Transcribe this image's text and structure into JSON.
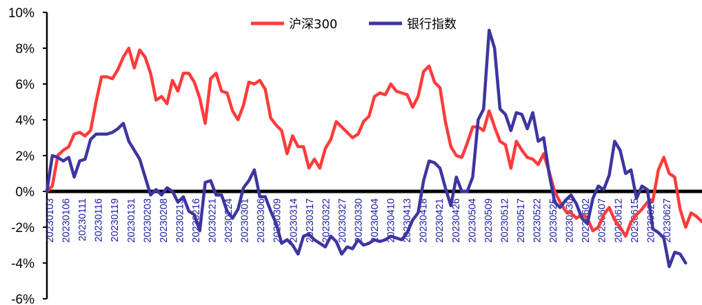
{
  "colors": {
    "series1": "#ff3b3b",
    "series2": "#3d35a0",
    "axis": "#000000",
    "zero_line": "#000000",
    "xtick_text": "#1a1aa0"
  },
  "chart_data": {
    "type": "line",
    "title": "",
    "xlabel": "",
    "ylabel": "",
    "ylim": [
      -6,
      10
    ],
    "y_ticks": [
      10,
      8,
      6,
      4,
      2,
      0,
      -2,
      -4,
      -6
    ],
    "y_tick_labels": [
      "10%",
      "8%",
      "6%",
      "4%",
      "2%",
      "0%",
      "-2%",
      "-4%",
      "-6%"
    ],
    "grid": false,
    "legend_position": "top-center",
    "x_tick_labels": [
      "20230103",
      "20230106",
      "20230111",
      "20230116",
      "20230119",
      "20230131",
      "20230203",
      "20230208",
      "20230213",
      "20230216",
      "20230221",
      "20230224",
      "20230301",
      "20230306",
      "20230309",
      "20230314",
      "20230317",
      "20230322",
      "20230327",
      "20230330",
      "20230404",
      "20230410",
      "20230413",
      "20230418",
      "20230421",
      "20230426",
      "20230504",
      "20230509",
      "20230512",
      "20230517",
      "20230522",
      "20230525",
      "20230530",
      "20230602",
      "20230607",
      "20230612",
      "20230615",
      "20230620",
      "20230627"
    ],
    "series": [
      {
        "name": "沪深300",
        "values": [
          0.0,
          0.3,
          2.0,
          2.3,
          2.5,
          3.2,
          3.3,
          3.1,
          3.4,
          5.0,
          6.4,
          6.4,
          6.3,
          6.8,
          7.5,
          8.0,
          6.9,
          7.9,
          7.5,
          6.6,
          5.1,
          5.3,
          4.9,
          6.2,
          5.6,
          6.6,
          6.6,
          6.1,
          5.2,
          3.8,
          6.3,
          6.6,
          5.6,
          5.5,
          4.5,
          4.0,
          4.8,
          6.1,
          6.0,
          6.2,
          5.7,
          4.1,
          3.7,
          3.4,
          2.1,
          3.1,
          2.5,
          2.5,
          1.3,
          1.8,
          1.3,
          2.4,
          2.9,
          3.9,
          3.6,
          3.3,
          3.0,
          3.2,
          3.9,
          4.2,
          5.3,
          5.5,
          5.4,
          6.0,
          5.6,
          5.5,
          5.4,
          4.7,
          5.3,
          6.7,
          7.0,
          6.1,
          5.8,
          3.9,
          2.5,
          2.0,
          1.9,
          2.7,
          3.6,
          3.6,
          3.4,
          4.5,
          3.6,
          2.8,
          2.6,
          1.3,
          2.8,
          2.3,
          1.9,
          1.8,
          1.5,
          2.1,
          1.1,
          0.0,
          -0.6,
          -1.1,
          -1.2,
          -1.5,
          -1.3,
          -1.5,
          -2.2,
          -2.0,
          -1.3,
          -0.9,
          -1.6,
          -2.0,
          -2.5,
          -1.7,
          -1.3,
          -1.0,
          -0.6,
          -0.5,
          1.2,
          1.9,
          1.0,
          0.8,
          -1.0,
          -2.0,
          -1.2,
          -1.4,
          -1.7
        ]
      },
      {
        "name": "银行指数",
        "values": [
          0.0,
          2.0,
          1.9,
          1.7,
          1.9,
          0.8,
          1.7,
          1.8,
          2.9,
          3.2,
          3.2,
          3.2,
          3.3,
          3.5,
          3.8,
          2.8,
          2.3,
          1.8,
          0.8,
          -0.2,
          0.1,
          -0.2,
          0.2,
          0.0,
          -0.6,
          -0.3,
          -1.1,
          -1.3,
          -2.2,
          0.5,
          0.6,
          -0.2,
          -0.2,
          -1.1,
          -1.5,
          -1.0,
          0.2,
          0.6,
          1.2,
          -0.3,
          -0.3,
          -1.1,
          -1.8,
          -2.9,
          -2.7,
          -3.0,
          -3.5,
          -2.5,
          -2.4,
          -2.7,
          -2.9,
          -3.1,
          -2.5,
          -2.8,
          -3.5,
          -3.1,
          -3.2,
          -2.7,
          -3.0,
          -2.9,
          -2.7,
          -2.8,
          -2.7,
          -2.5,
          -2.6,
          -2.7,
          -2.3,
          -1.6,
          -1.2,
          0.6,
          1.7,
          1.6,
          1.3,
          0.2,
          -0.8,
          0.8,
          0.0,
          0.0,
          0.8,
          4.0,
          4.6,
          9.0,
          8.0,
          4.6,
          4.3,
          3.4,
          4.4,
          4.3,
          3.5,
          4.4,
          2.8,
          3.0,
          1.0,
          -0.6,
          -0.9,
          -0.5,
          -0.2,
          -0.7,
          -1.5,
          -1.8,
          -0.4,
          0.3,
          0.1,
          0.9,
          2.8,
          2.3,
          1.0,
          1.2,
          -0.4,
          0.3,
          0.1,
          -2.1,
          -2.3,
          -2.6,
          -4.2,
          -3.4,
          -3.5,
          -4.0
        ]
      }
    ]
  }
}
